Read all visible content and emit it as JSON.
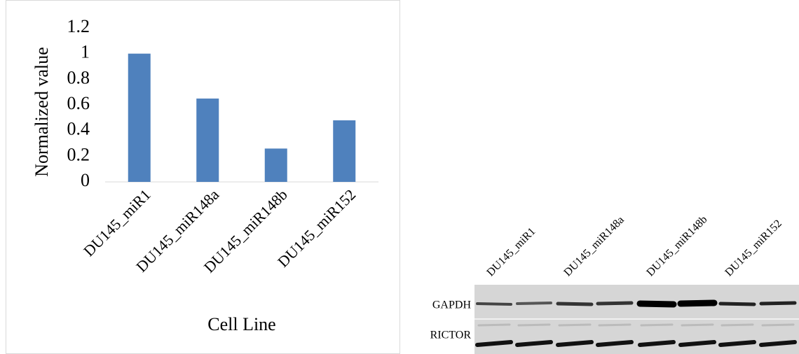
{
  "chart_data": {
    "type": "bar",
    "x_label": "Cell Line",
    "y_label": "Normalized value",
    "categories": [
      "DU145_miR1",
      "DU145_miR148a",
      "DU145_miR148b",
      "DU145_miR152"
    ],
    "values": [
      1,
      0.65,
      0.26,
      0.48
    ],
    "color": "#4f81bd",
    "ylim": [
      0,
      1.2
    ],
    "yticks": [
      0,
      0.2,
      0.4,
      0.6,
      0.8,
      1,
      1.2
    ],
    "grid": false
  },
  "gel": {
    "lane_labels": [
      "DU145_miR1",
      "DU145_miR148a",
      "DU145_miR148b",
      "DU145_miR152"
    ],
    "row_labels": [
      "GAPDH",
      "RICTOR"
    ]
  }
}
